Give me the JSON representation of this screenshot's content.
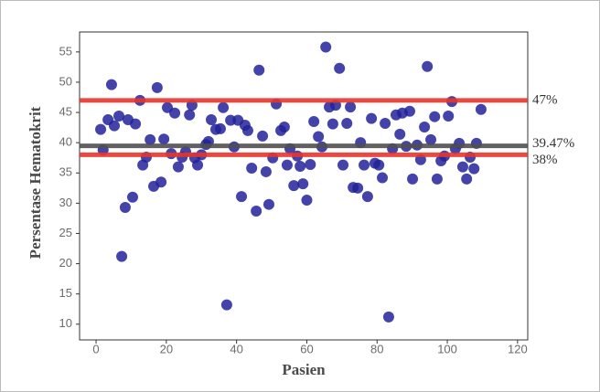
{
  "chart_data": {
    "type": "scatter",
    "x_label": "Pasien",
    "y_label": "Persentase Hematokrit",
    "color": "#22229a",
    "xlim": [
      -4.7,
      122.9
    ],
    "ylim": [
      7.4,
      58.3
    ],
    "xticks": [
      0,
      20,
      40,
      60,
      80,
      100,
      120
    ],
    "yticks": [
      10,
      15,
      20,
      25,
      30,
      35,
      40,
      45,
      50,
      55
    ],
    "hlines": [
      {
        "value": 47,
        "label": "47%",
        "color": "#e8352c"
      },
      {
        "value": 39.47,
        "label": "39.47%",
        "color": "#505050"
      },
      {
        "value": 38,
        "label": "38%",
        "color": "#e8352c"
      }
    ],
    "x": [
      1.3,
      2,
      3.4,
      4.4,
      5.2,
      6.5,
      7.3,
      8.3,
      9.1,
      10.4,
      11.2,
      12.5,
      13.3,
      14.3,
      15.4,
      16.4,
      17.4,
      18.5,
      19.3,
      20.3,
      21.4,
      22.4,
      23.4,
      24.5,
      25.5,
      26.6,
      27.3,
      28.1,
      28.9,
      30,
      31.3,
      32,
      32.8,
      34.1,
      35.4,
      36.2,
      37.2,
      38.3,
      39.3,
      40.4,
      41.4,
      42.4,
      43.2,
      44.3,
      45.6,
      46.4,
      47.4,
      48.4,
      49.2,
      50.3,
      51.3,
      52.6,
      53.6,
      54.4,
      55.2,
      56.3,
      57.3,
      58.1,
      58.9,
      60,
      61,
      62,
      63.3,
      64.3,
      65.4,
      66.4,
      67.4,
      68.2,
      69.3,
      70.3,
      71.4,
      72.4,
      73.2,
      74.5,
      75.3,
      76.3,
      77.3,
      78.4,
      79.4,
      80.5,
      81.5,
      82.3,
      83.3,
      84.4,
      85.4,
      86.5,
      87.2,
      88.3,
      89.3,
      90.1,
      91.4,
      92.4,
      93.5,
      94.3,
      95.3,
      96.4,
      97.1,
      98.2,
      99.2,
      100.3,
      101.3,
      102.3,
      103.4,
      104.4,
      105.5,
      106.5,
      107.6,
      108.3,
      109.6
    ],
    "values": [
      42.2,
      38.8,
      43.8,
      49.6,
      42.8,
      44.4,
      21.2,
      29.3,
      43.8,
      31,
      43.1,
      47,
      36.3,
      37.6,
      40.5,
      32.8,
      49.1,
      33.5,
      40.6,
      45.8,
      38.2,
      44.9,
      36,
      37.6,
      38.5,
      44.6,
      46.2,
      37.5,
      36.3,
      38,
      39.7,
      40.2,
      43.8,
      42.2,
      42.3,
      45.8,
      13.2,
      43.7,
      39.3,
      43.7,
      31.1,
      42.9,
      42,
      35.8,
      28.7,
      52,
      41.1,
      35.2,
      29.8,
      37.5,
      46.4,
      42,
      42.6,
      36.3,
      39,
      32.9,
      37.8,
      36.1,
      33.2,
      30.5,
      36.4,
      43.5,
      41,
      39.3,
      55.8,
      45.9,
      43.1,
      46.2,
      52.3,
      36.3,
      43.2,
      45.9,
      32.6,
      32.5,
      40,
      36.3,
      31.1,
      44,
      36.6,
      36.3,
      34.2,
      43.2,
      11.2,
      39,
      44.6,
      41.4,
      44.9,
      39.4,
      45.2,
      34,
      39.6,
      37.2,
      42.6,
      52.6,
      40.5,
      44.3,
      34,
      37,
      37.8,
      44.4,
      46.8,
      39,
      39.9,
      36,
      34,
      37.6,
      35.7,
      39.9,
      45.5
    ]
  }
}
